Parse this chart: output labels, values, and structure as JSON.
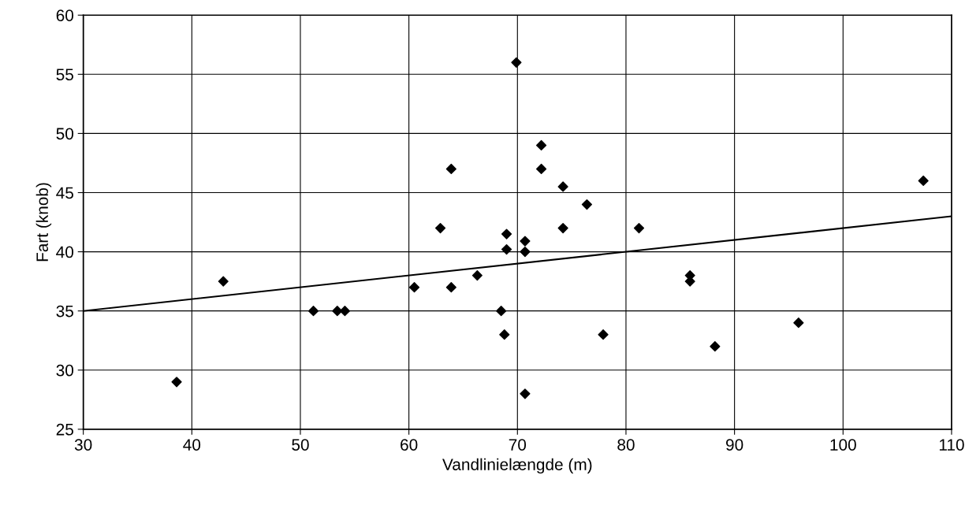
{
  "chart_data": {
    "type": "scatter",
    "xlabel": "Vandlinielængde (m)",
    "ylabel": "Fart (knob)",
    "xlim": [
      30,
      110
    ],
    "xticks": [
      30,
      40,
      50,
      60,
      70,
      80,
      90,
      100,
      110
    ],
    "ylim": [
      25,
      60
    ],
    "yticks": [
      25,
      30,
      35,
      40,
      45,
      50,
      55,
      60
    ],
    "grid": true,
    "marker": "diamond",
    "series": [
      {
        "color": "#000000",
        "x": [
          38.6,
          42.9,
          51.2,
          53.4,
          54.1,
          60.5,
          62.9,
          63.9,
          63.9,
          66.3,
          68.5,
          68.8,
          69.0,
          69.0,
          69.9,
          72.2,
          72.2,
          74.2,
          76.4,
          74.2,
          81.2,
          70.7,
          70.7,
          70.7,
          77.9,
          85.9,
          85.9,
          88.2,
          95.9,
          107.4
        ],
        "values": [
          29,
          37.5,
          35,
          35,
          35,
          37,
          42,
          47,
          37,
          38,
          35,
          33,
          41.5,
          40.2,
          56,
          49,
          47,
          45.5,
          44,
          42,
          42,
          40.9,
          40,
          28,
          33,
          38,
          37.5,
          32,
          34,
          46
        ]
      },
      {
        "type": "line",
        "color": "#000000",
        "marker": "none",
        "line_style": "solid",
        "x": [
          30,
          110
        ],
        "values": [
          35,
          43
        ]
      }
    ]
  }
}
